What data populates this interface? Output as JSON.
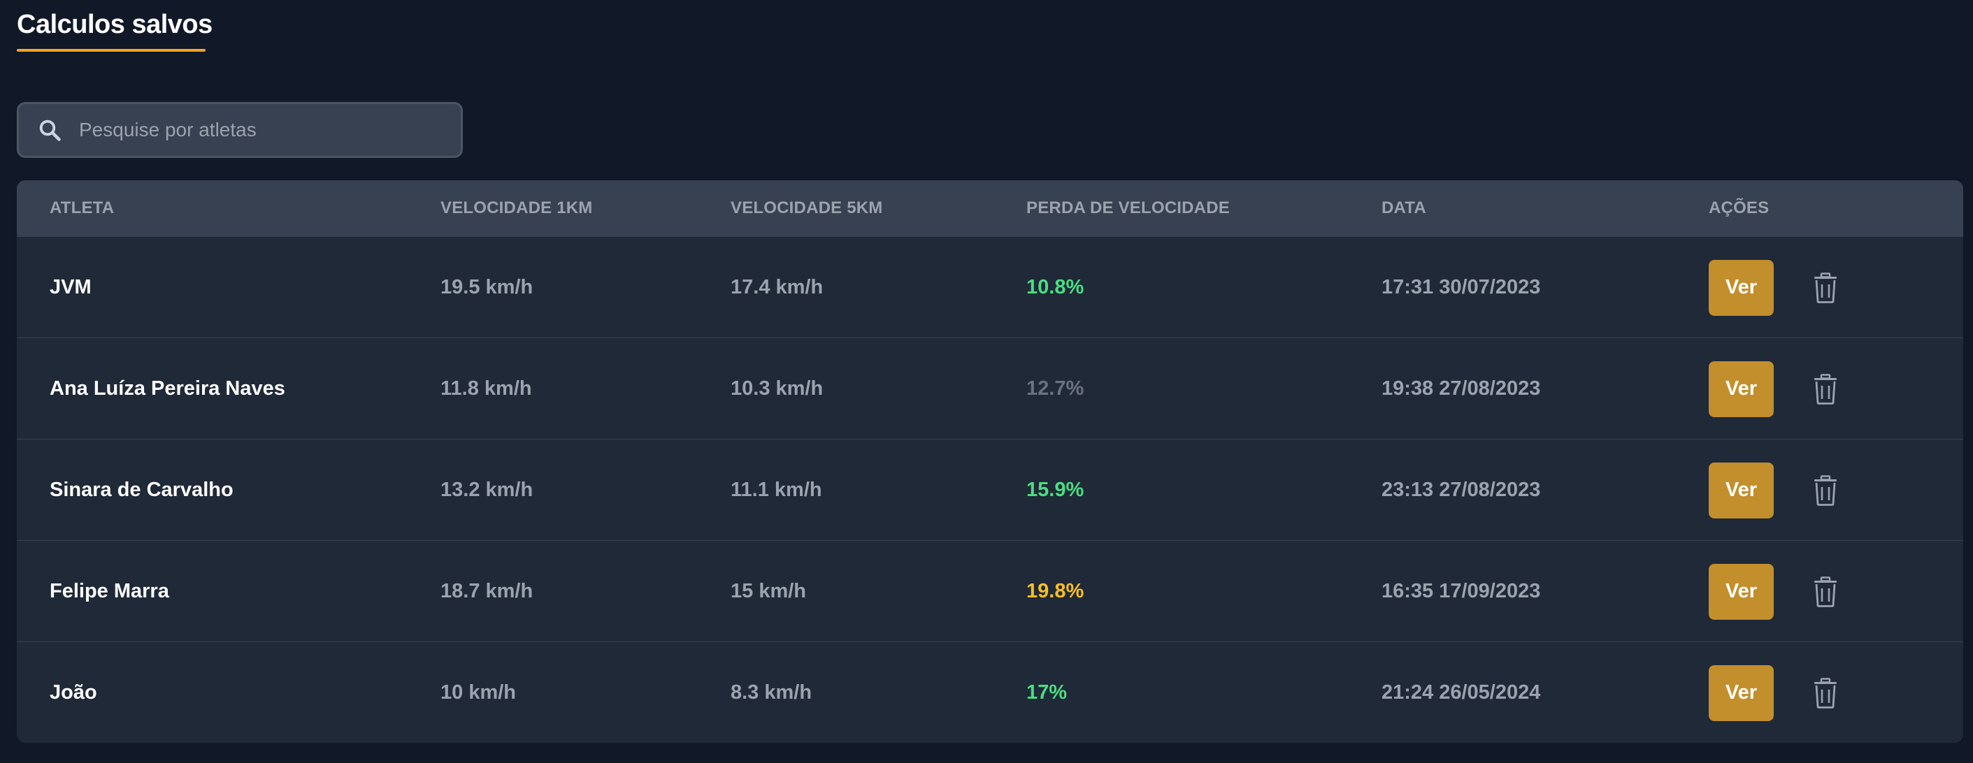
{
  "page": {
    "title": "Calculos salvos"
  },
  "search": {
    "placeholder": "Pesquise por atletas",
    "value": ""
  },
  "table": {
    "headers": [
      "ATLETA",
      "VELOCIDADE 1KM",
      "VELOCIDADE 5KM",
      "PERDA DE VELOCIDADE",
      "DATA",
      "AÇÕES"
    ],
    "rows": [
      {
        "athlete": "JVM",
        "speed_1km": "19.5 km/h",
        "speed_5km": "17.4 km/h",
        "loss": "10.8%",
        "loss_color": "#4ade80",
        "date": "17:31 30/07/2023",
        "view_label": "Ver"
      },
      {
        "athlete": "Ana Luíza Pereira Naves",
        "speed_1km": "11.8 km/h",
        "speed_5km": "10.3 km/h",
        "loss": "12.7%",
        "loss_color": "#6b7280",
        "date": "19:38 27/08/2023",
        "view_label": "Ver"
      },
      {
        "athlete": "Sinara de Carvalho",
        "speed_1km": "13.2 km/h",
        "speed_5km": "11.1 km/h",
        "loss": "15.9%",
        "loss_color": "#4ade80",
        "date": "23:13 27/08/2023",
        "view_label": "Ver"
      },
      {
        "athlete": "Felipe Marra",
        "speed_1km": "18.7 km/h",
        "speed_5km": "15 km/h",
        "loss": "19.8%",
        "loss_color": "#fbbf24",
        "date": "16:35 17/09/2023",
        "view_label": "Ver"
      },
      {
        "athlete": "João",
        "speed_1km": "10 km/h",
        "speed_5km": "8.3 km/h",
        "loss": "17%",
        "loss_color": "#4ade80",
        "date": "21:24 26/05/2024",
        "view_label": "Ver"
      }
    ]
  },
  "colors": {
    "background": "#111827",
    "accent": "#f5a524",
    "button": "#c38f2c"
  },
  "icons": {
    "search": "search-icon",
    "delete": "trash-icon"
  }
}
